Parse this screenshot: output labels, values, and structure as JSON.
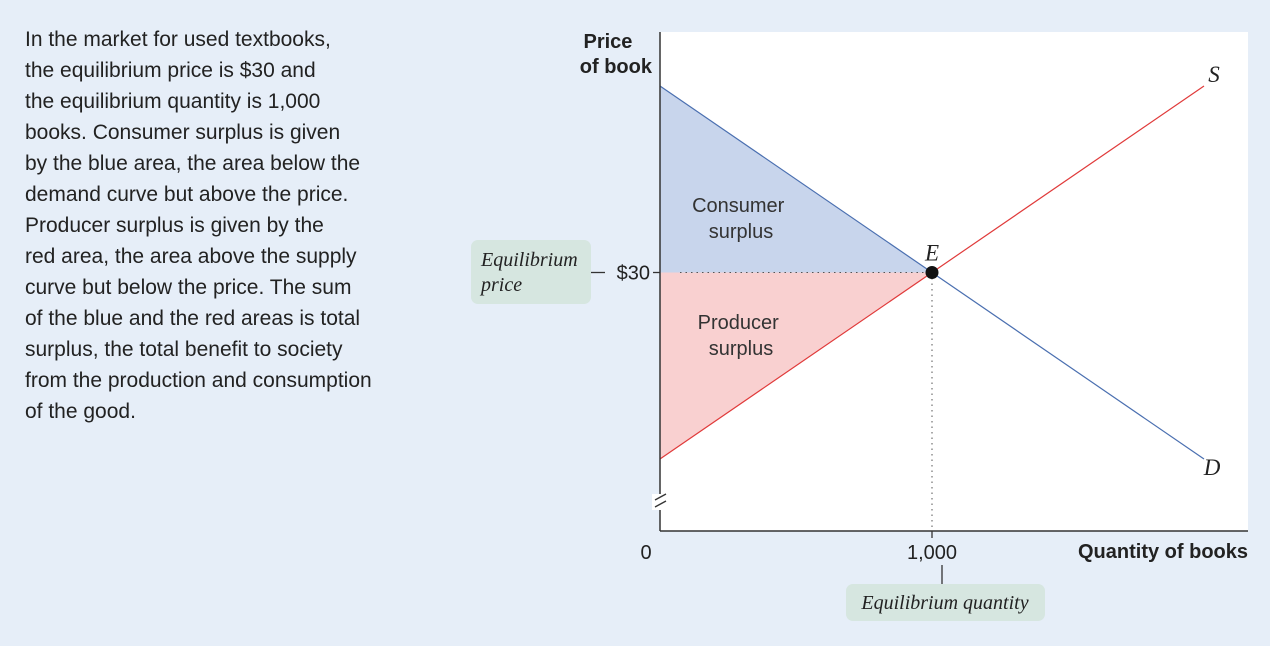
{
  "caption": {
    "lines": [
      "In the market for used textbooks,",
      "the equilibrium price is $30 and",
      "the equilibrium quantity is 1,000",
      "books. Consumer surplus is given",
      "by the blue area, the area below the",
      "demand curve but above the price.",
      "Producer surplus is given by the",
      "red area, the area above the supply",
      "curve but below the price. The sum",
      "of the blue and the red areas is total",
      "surplus, the total benefit to society",
      "from the production and consumption",
      "of the good."
    ]
  },
  "colors": {
    "background": "#e6eef8",
    "plot_background": "#ffffff",
    "consumer_surplus_fill": "#c8d5ec",
    "producer_surplus_fill": "#f9d0d0",
    "supply_line": "#e03a3a",
    "demand_line": "#4a6fb0",
    "callout_fill": "#d6e6e0"
  },
  "chart_data": {
    "type": "line",
    "ylabel_lines": [
      "Price",
      "of book"
    ],
    "xlabel": "Quantity of books",
    "x_tick_labels": [
      "0",
      "1,000"
    ],
    "y_tick_labels": [
      "$30"
    ],
    "xlim": [
      0,
      2000
    ],
    "ylim": [
      0,
      60
    ],
    "axis_break": true,
    "series": [
      {
        "name": "S",
        "x": [
          0,
          2000
        ],
        "y": [
          10,
          50
        ]
      },
      {
        "name": "D",
        "x": [
          0,
          2000
        ],
        "y": [
          50,
          10
        ]
      }
    ],
    "equilibrium": {
      "label": "E",
      "x": 1000,
      "y": 30
    },
    "areas": [
      {
        "label_lines": [
          "Consumer",
          "surplus"
        ],
        "polygon": [
          [
            0,
            50
          ],
          [
            1000,
            30
          ],
          [
            0,
            30
          ]
        ]
      },
      {
        "label_lines": [
          "Producer",
          "surplus"
        ],
        "polygon": [
          [
            0,
            10
          ],
          [
            1000,
            30
          ],
          [
            0,
            30
          ]
        ]
      }
    ],
    "callouts": {
      "price_lines": [
        "Equilibrium",
        "price"
      ],
      "quantity": "Equilibrium quantity"
    }
  }
}
